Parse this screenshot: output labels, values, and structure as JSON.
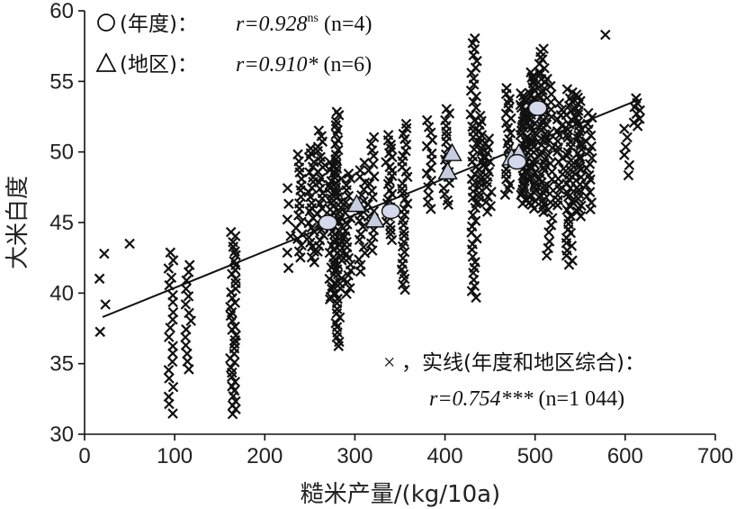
{
  "chart_data": {
    "type": "scatter",
    "xlabel": "糙米产量/(kg/10a)",
    "ylabel": "大米白度",
    "xlim": [
      0,
      700
    ],
    "ylim": [
      30,
      60
    ],
    "x_ticks": [
      0,
      100,
      200,
      300,
      400,
      500,
      600,
      700
    ],
    "y_ticks": [
      30,
      35,
      40,
      45,
      50,
      55,
      60
    ],
    "grid": false,
    "legend_placement": "top-left and bottom-right",
    "legend": [
      {
        "symbol": "○",
        "label": "(年度)：",
        "r_text": "r=0.928",
        "sig": "ns",
        "n_text": "(n=4)"
      },
      {
        "symbol": "△",
        "label": "(地区)：",
        "r_text": "r=0.910*",
        "sig": "",
        "n_text": "(n=6)"
      },
      {
        "symbol": "×",
        "label": "，实线(年度和地区综合)：",
        "r_text": "r=0.754***",
        "sig": "",
        "n_text": "(n=1 044)"
      }
    ],
    "regression_line": {
      "x": [
        20,
        615
      ],
      "y": [
        38.3,
        53.7
      ]
    },
    "annual_means": [
      {
        "x": 270,
        "y": 45.0
      },
      {
        "x": 340,
        "y": 45.8
      },
      {
        "x": 480,
        "y": 49.3
      },
      {
        "x": 503,
        "y": 53.1
      }
    ],
    "regional_means": [
      {
        "x": 302,
        "y": 46.3
      },
      {
        "x": 322,
        "y": 45.2
      },
      {
        "x": 403,
        "y": 48.6
      },
      {
        "x": 408,
        "y": 49.9
      },
      {
        "x": 474,
        "y": 49.6
      },
      {
        "x": 482,
        "y": 49.9
      }
    ],
    "observation_clusters": [
      {
        "x": 20,
        "ymin": 37.3,
        "ymax": 42.8,
        "n": 4
      },
      {
        "x": 50,
        "ymin": 43.5,
        "ymax": 43.5,
        "n": 1
      },
      {
        "x": 95,
        "ymin": 31.5,
        "ymax": 42.9,
        "n": 20
      },
      {
        "x": 115,
        "ymin": 34.6,
        "ymax": 42.0,
        "n": 14
      },
      {
        "x": 165,
        "ymin": 31.4,
        "ymax": 44.3,
        "n": 40
      },
      {
        "x": 228,
        "ymin": 41.8,
        "ymax": 47.4,
        "n": 6
      },
      {
        "x": 238,
        "ymin": 42.5,
        "ymax": 49.8,
        "n": 18
      },
      {
        "x": 252,
        "ymin": 42.2,
        "ymax": 50.3,
        "n": 24
      },
      {
        "x": 262,
        "ymin": 43.0,
        "ymax": 51.5,
        "n": 24
      },
      {
        "x": 275,
        "ymin": 39.5,
        "ymax": 49.5,
        "n": 40
      },
      {
        "x": 282,
        "ymin": 36.2,
        "ymax": 52.9,
        "n": 50
      },
      {
        "x": 292,
        "ymin": 40.0,
        "ymax": 48.5,
        "n": 22
      },
      {
        "x": 308,
        "ymin": 41.5,
        "ymax": 49.2,
        "n": 18
      },
      {
        "x": 318,
        "ymin": 43.0,
        "ymax": 51.1,
        "n": 18
      },
      {
        "x": 338,
        "ymin": 43.8,
        "ymax": 51.2,
        "n": 24
      },
      {
        "x": 355,
        "ymin": 40.2,
        "ymax": 52.0,
        "n": 32
      },
      {
        "x": 383,
        "ymin": 46.0,
        "ymax": 52.3,
        "n": 14
      },
      {
        "x": 402,
        "ymin": 46.2,
        "ymax": 53.1,
        "n": 18
      },
      {
        "x": 432,
        "ymin": 39.7,
        "ymax": 58.1,
        "n": 45
      },
      {
        "x": 440,
        "ymin": 46.5,
        "ymax": 52.5,
        "n": 20
      },
      {
        "x": 448,
        "ymin": 45.8,
        "ymax": 51.0,
        "n": 16
      },
      {
        "x": 470,
        "ymin": 47.0,
        "ymax": 54.5,
        "n": 22
      },
      {
        "x": 487,
        "ymin": 46.3,
        "ymax": 54.2,
        "n": 40
      },
      {
        "x": 497,
        "ymin": 46.0,
        "ymax": 55.6,
        "n": 50
      },
      {
        "x": 508,
        "ymin": 45.8,
        "ymax": 57.3,
        "n": 45
      },
      {
        "x": 516,
        "ymin": 42.6,
        "ymax": 55.2,
        "n": 24
      },
      {
        "x": 528,
        "ymin": 46.2,
        "ymax": 53.4,
        "n": 20
      },
      {
        "x": 538,
        "ymin": 42.0,
        "ymax": 54.5,
        "n": 40
      },
      {
        "x": 548,
        "ymin": 45.5,
        "ymax": 54.1,
        "n": 36
      },
      {
        "x": 560,
        "ymin": 46.0,
        "ymax": 52.8,
        "n": 18
      },
      {
        "x": 578,
        "ymin": 58.3,
        "ymax": 58.3,
        "n": 1
      },
      {
        "x": 602,
        "ymin": 48.4,
        "ymax": 51.7,
        "n": 6
      },
      {
        "x": 613,
        "ymin": 51.8,
        "ymax": 53.8,
        "n": 8
      }
    ]
  }
}
